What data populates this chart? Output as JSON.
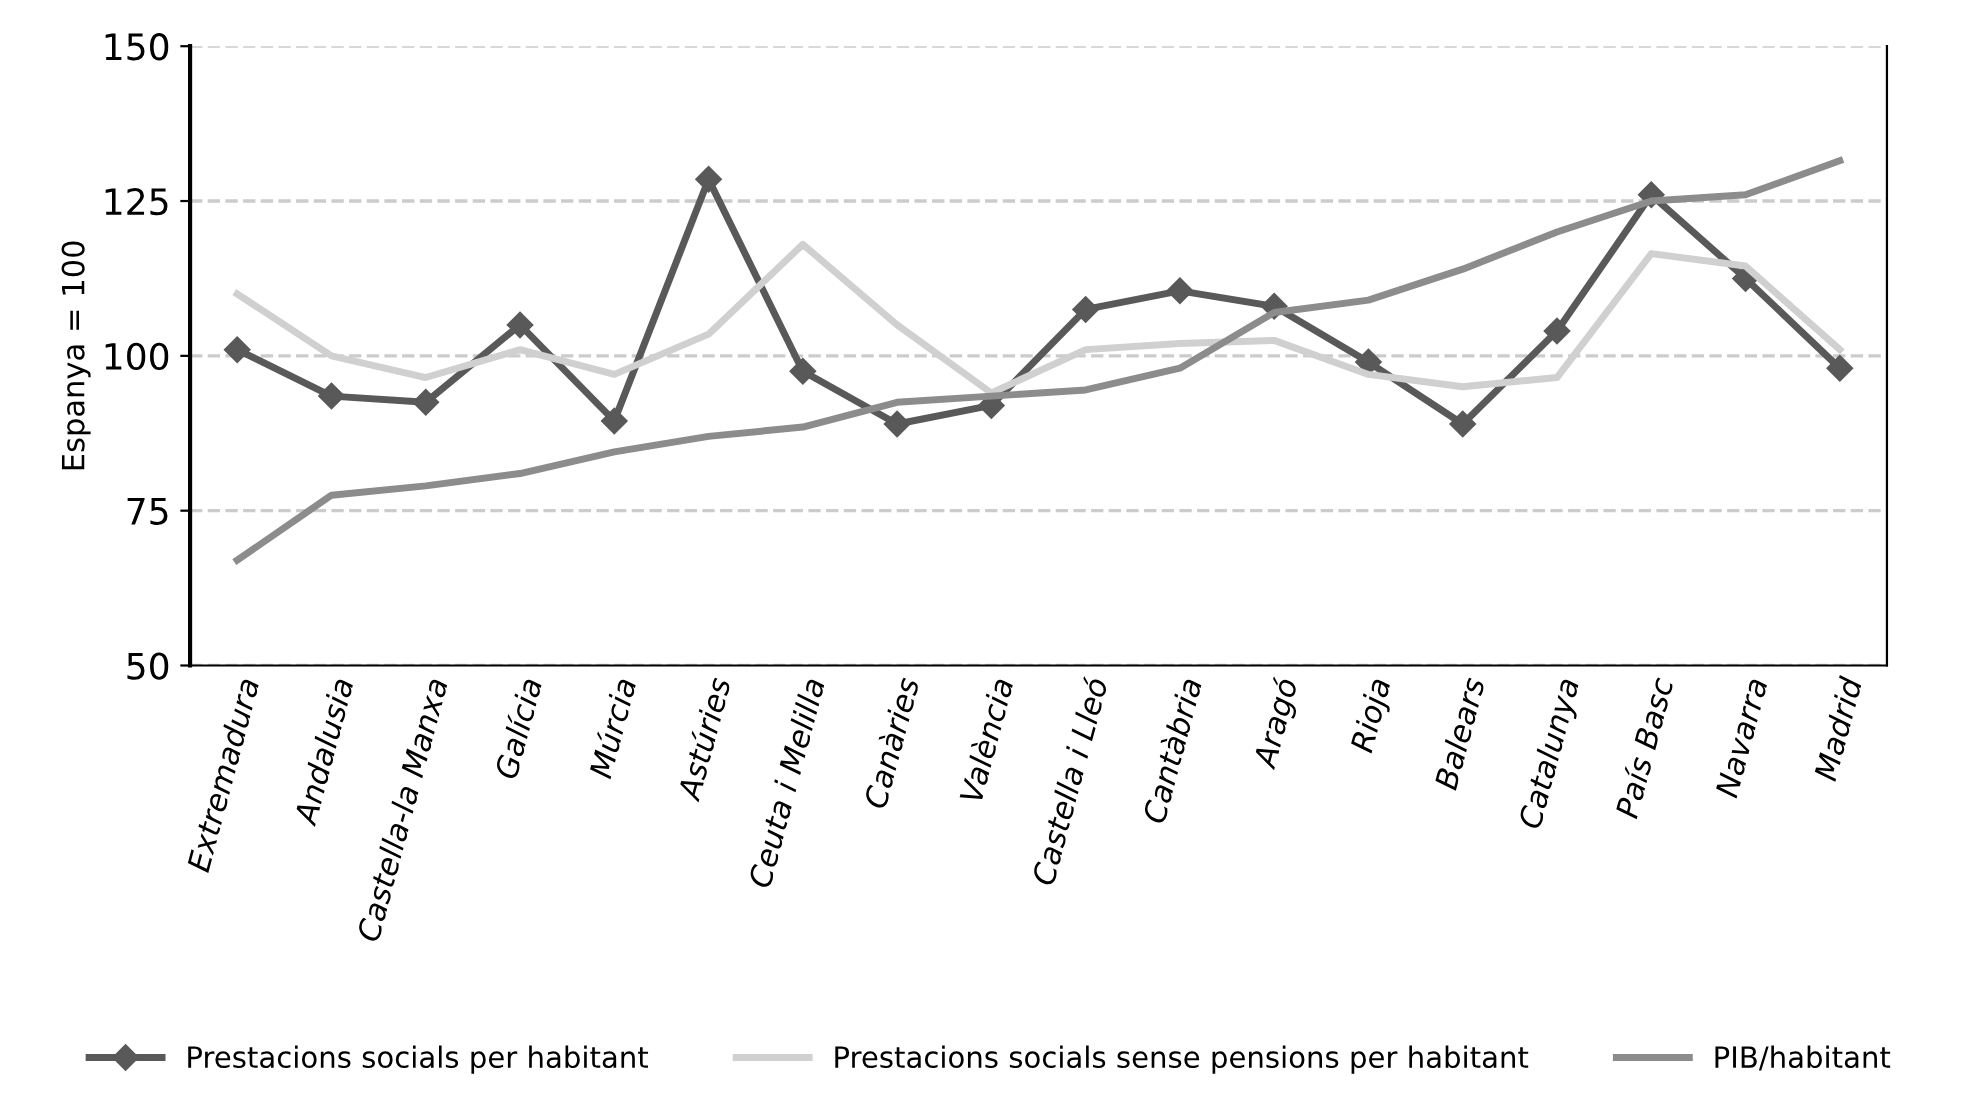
{
  "chart_data": {
    "type": "line",
    "ylabel": "Espanya = 100",
    "categories": [
      "Extremadura",
      "Andalusia",
      "Castella-la Manxa",
      "Galícia",
      "Múrcia",
      "Astúries",
      "Ceuta i Melilla",
      "Canàries",
      "València",
      "Castella i Lleó",
      "Cantàbria",
      "Aragó",
      "Rioja",
      "Balears",
      "Catalunya",
      "País Basc",
      "Navarra",
      "Madrid"
    ],
    "series": [
      {
        "name": "Prestacions socials per habitant",
        "color": "#595959",
        "marker": "diamond",
        "values": [
          101,
          93.5,
          92.5,
          105,
          89.5,
          128.5,
          97.5,
          89,
          92,
          107.5,
          110.5,
          108,
          99,
          89,
          104,
          126,
          112.5,
          98
        ]
      },
      {
        "name": "Prestacions socials sense pensions per habitant",
        "color": "#d0d0d0",
        "values": [
          110,
          100,
          96.5,
          101,
          97,
          103.5,
          118,
          105,
          94,
          101,
          102,
          102.5,
          97,
          95,
          96.5,
          116.5,
          114.5,
          101
        ]
      },
      {
        "name": "PIB/habitant",
        "color": "#8c8c8c",
        "values": [
          67,
          77.5,
          79,
          81,
          84.5,
          87,
          88.5,
          92.5,
          93.5,
          94.5,
          98,
          107,
          109,
          114,
          120,
          125,
          126,
          131.5
        ]
      }
    ],
    "ylim": [
      50,
      150
    ],
    "yticks": [
      50,
      75,
      100,
      125,
      150
    ],
    "grid": "y",
    "legend": "bottom",
    "line_style": "solid"
  }
}
